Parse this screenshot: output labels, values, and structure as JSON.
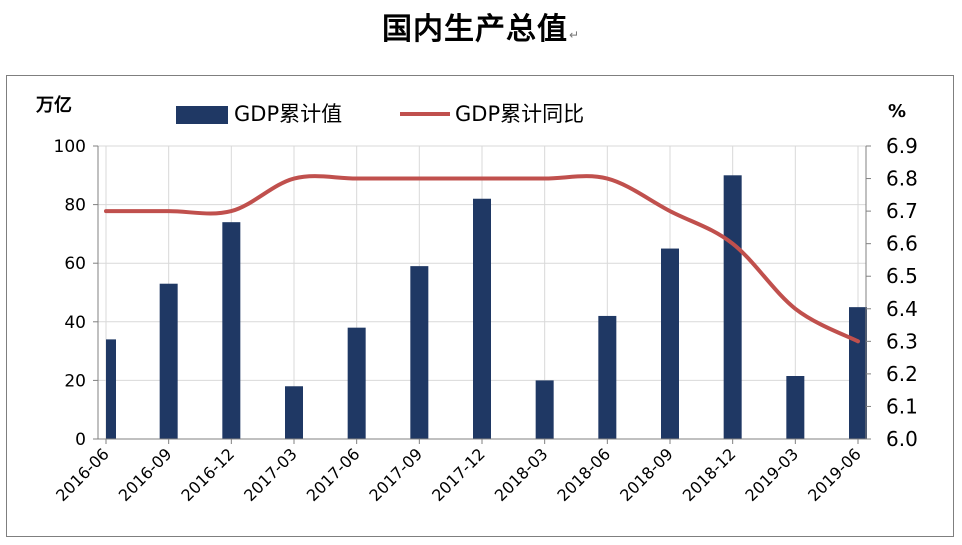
{
  "title": "国内生产总值",
  "title_mark": "↵",
  "chart_data": {
    "type": "bar",
    "categories": [
      "2016-06",
      "2016-09",
      "2016-12",
      "2017-03",
      "2017-06",
      "2017-09",
      "2017-12",
      "2018-03",
      "2018-06",
      "2018-09",
      "2018-12",
      "2019-03",
      "2019-06"
    ],
    "series": [
      {
        "name": "GDP累计值",
        "type": "bar",
        "axis": "left",
        "color": "#1f3864",
        "values": [
          34,
          53,
          74,
          18,
          38,
          59,
          82,
          20,
          42,
          65,
          90,
          21.5,
          45
        ]
      },
      {
        "name": "GDP累计同比",
        "type": "line",
        "axis": "right",
        "color": "#c0504d",
        "values": [
          6.7,
          6.7,
          6.7,
          6.8,
          6.8,
          6.8,
          6.8,
          6.8,
          6.8,
          6.7,
          6.6,
          6.4,
          6.3
        ]
      }
    ],
    "y_left": {
      "unit_label": "万亿",
      "range": [
        0,
        100
      ],
      "ticks": [
        "0",
        "20",
        "40",
        "60",
        "80",
        "100"
      ]
    },
    "y_right": {
      "unit_label": "%",
      "range": [
        6.0,
        6.9
      ],
      "ticks": [
        "6.0",
        "6.1",
        "6.2",
        "6.3",
        "6.4",
        "6.5",
        "6.6",
        "6.7",
        "6.8",
        "6.9"
      ]
    },
    "grid": true,
    "legend_position": "top"
  }
}
